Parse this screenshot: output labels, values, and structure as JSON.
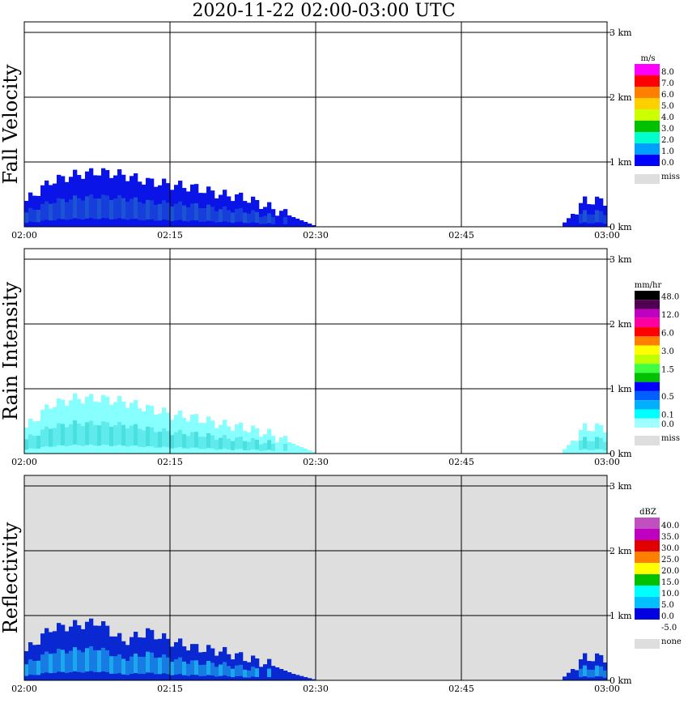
{
  "title": "2020-11-22   02:00-03:00 UTC",
  "time_ticks": [
    "02:00",
    "02:15",
    "02:30",
    "02:45",
    "03:00"
  ],
  "height_ticks": [
    "0 km",
    "1 km",
    "2 km",
    "3 km"
  ],
  "chart_data": [
    {
      "type": "heatmap",
      "ylabel": "Fall Velocity",
      "legend_unit": "m/s",
      "legend": [
        {
          "label": "8.0",
          "color": "#ff00ff"
        },
        {
          "label": "7.0",
          "color": "#ff0000"
        },
        {
          "label": "6.0",
          "color": "#ff8000"
        },
        {
          "label": "5.0",
          "color": "#ffd000"
        },
        {
          "label": "4.0",
          "color": "#ccff00"
        },
        {
          "label": "3.0",
          "color": "#00c000"
        },
        {
          "label": "2.0",
          "color": "#00ffcc"
        },
        {
          "label": "1.0",
          "color": "#00a0ff"
        },
        {
          "label": "0.0",
          "color": "#0000ff"
        }
      ],
      "missing_label": "miss",
      "background": "#ffffff",
      "echo_profile_km": [
        0.4,
        0.7,
        0.8,
        0.85,
        0.8,
        0.7,
        0.65,
        0.6,
        0.5,
        0.45,
        0.3,
        0.15,
        0,
        0,
        0,
        0,
        0,
        0,
        0,
        0,
        0,
        0,
        0,
        0.4
      ],
      "echo_colors": [
        "#0a14e6",
        "#1e5ad2"
      ]
    },
    {
      "type": "heatmap",
      "ylabel": "Rain Intensity",
      "legend_unit": "mm/hr",
      "legend": [
        {
          "label": "48.0",
          "color": "#000000"
        },
        {
          "label": "",
          "color": "#500050"
        },
        {
          "label": "12.0",
          "color": "#c000c0"
        },
        {
          "label": "",
          "color": "#ff00a0"
        },
        {
          "label": "6.0",
          "color": "#ff0000"
        },
        {
          "label": "",
          "color": "#ff8000"
        },
        {
          "label": "3.0",
          "color": "#ffff00"
        },
        {
          "label": "",
          "color": "#c0ff00"
        },
        {
          "label": "1.5",
          "color": "#40ff40"
        },
        {
          "label": "",
          "color": "#00c000"
        },
        {
          "label": "",
          "color": "#0000ff"
        },
        {
          "label": "0.5",
          "color": "#0060ff"
        },
        {
          "label": "",
          "color": "#00b0ff"
        },
        {
          "label": "0.1",
          "color": "#00ffff"
        },
        {
          "label": "0.0",
          "color": "#a0ffff"
        }
      ],
      "missing_label": "miss",
      "background": "#ffffff",
      "echo_profile_km": [
        0.4,
        0.75,
        0.85,
        0.85,
        0.8,
        0.7,
        0.6,
        0.55,
        0.45,
        0.4,
        0.3,
        0.15,
        0,
        0,
        0,
        0,
        0,
        0,
        0,
        0,
        0,
        0,
        0,
        0.4
      ],
      "echo_colors": [
        "#88ffff",
        "#44dddd"
      ]
    },
    {
      "type": "heatmap",
      "ylabel": "Reflectivity",
      "legend_unit": "dBZ",
      "legend": [
        {
          "label": "40.0",
          "color": "#c050c0"
        },
        {
          "label": "35.0",
          "color": "#c000c0"
        },
        {
          "label": "30.0",
          "color": "#e00000"
        },
        {
          "label": "25.0",
          "color": "#ff8000"
        },
        {
          "label": "20.0",
          "color": "#ffff00"
        },
        {
          "label": "15.0",
          "color": "#00c000"
        },
        {
          "label": "10.0",
          "color": "#00ffff"
        },
        {
          "label": "5.0",
          "color": "#00c0ff"
        },
        {
          "label": "0.0",
          "color": "#0000e0"
        },
        {
          "label": "-5.0",
          "color": "#ffffff"
        }
      ],
      "missing_label": "none",
      "background": "#dedede",
      "echo_profile_km": [
        0.45,
        0.8,
        0.85,
        0.9,
        0.6,
        0.75,
        0.6,
        0.5,
        0.45,
        0.35,
        0.25,
        0.1,
        0,
        0,
        0,
        0,
        0,
        0,
        0,
        0,
        0,
        0,
        0,
        0.35
      ],
      "echo_colors": [
        "#0a28d2",
        "#1eb4f0"
      ]
    }
  ]
}
